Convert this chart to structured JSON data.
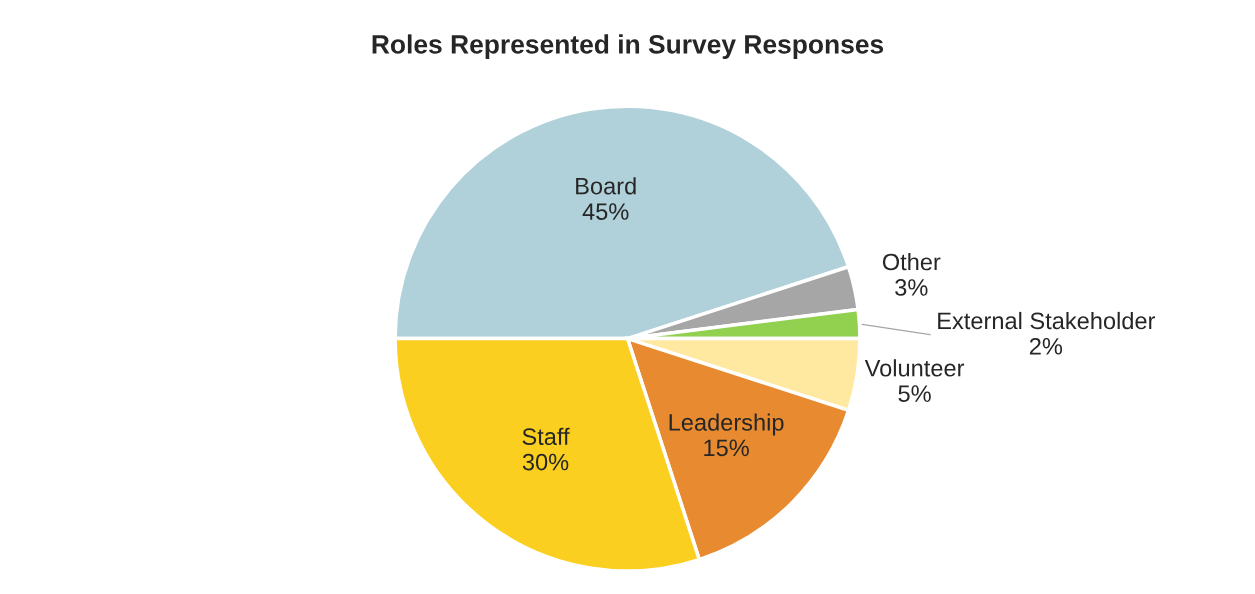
{
  "chart_data": {
    "type": "pie",
    "title": "Roles Represented in Survey Responses",
    "categories": [
      "Board",
      "Other",
      "External Stakeholder",
      "Volunteer",
      "Leadership",
      "Staff"
    ],
    "values": [
      45,
      3,
      2,
      5,
      15,
      30
    ],
    "value_labels": [
      "45%",
      "3%",
      "2%",
      "5%",
      "15%",
      "30%"
    ],
    "colors": [
      "#b0d0da",
      "#a6a6a6",
      "#92d050",
      "#ffe9a1",
      "#e88a30",
      "#fbcf1f"
    ],
    "legend": false
  }
}
